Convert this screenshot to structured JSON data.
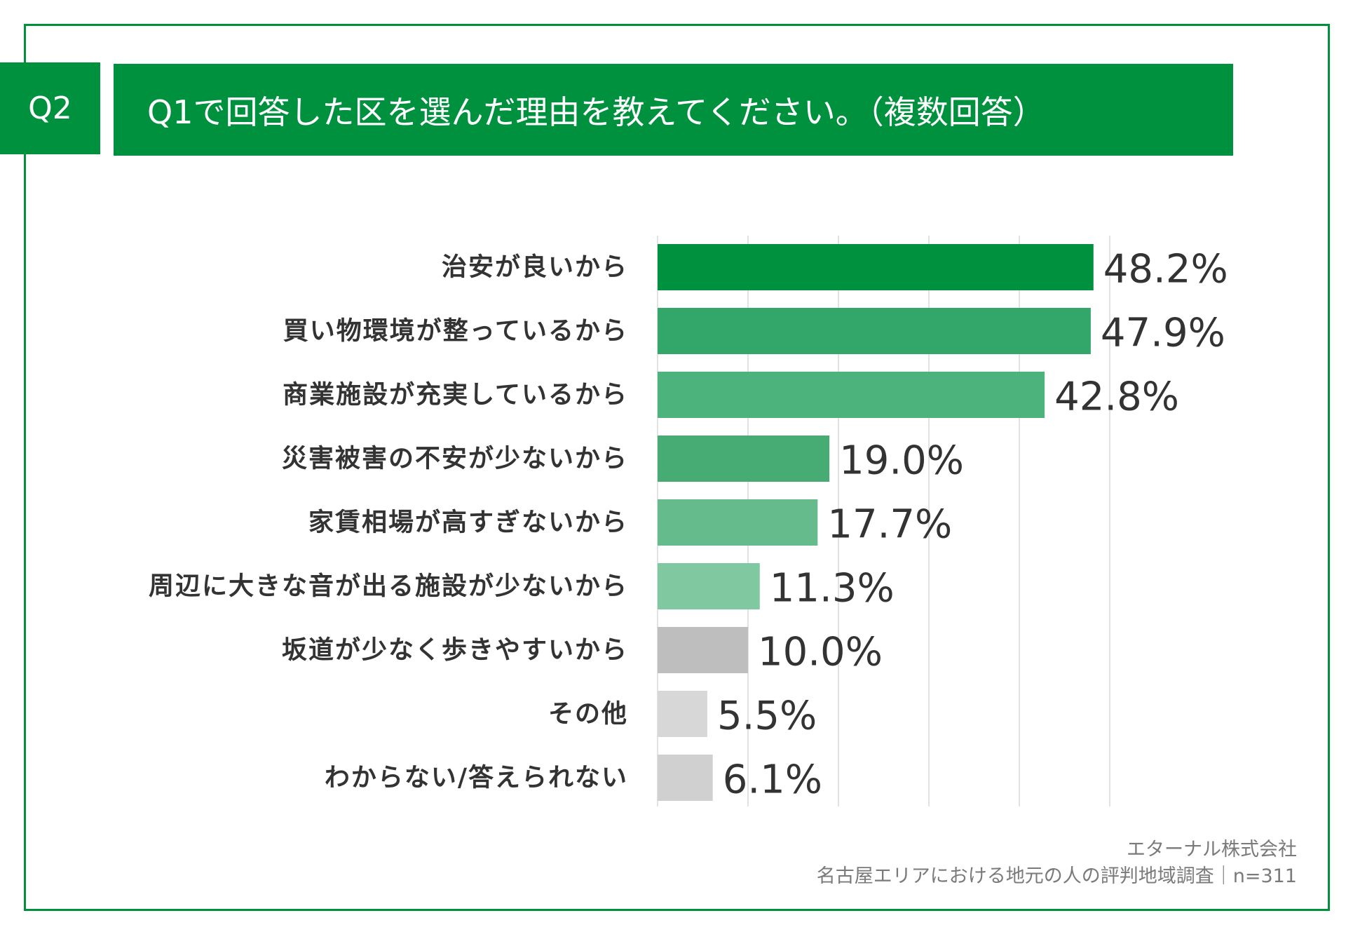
{
  "header": {
    "badge": "Q2",
    "question": "Q1で回答した区を選んだ理由を教えてください。（複数回答）"
  },
  "chart_data": {
    "type": "bar",
    "orientation": "horizontal",
    "categories": [
      "治安が良いから",
      "買い物環境が整っているから",
      "商業施設が充実しているから",
      "災害被害の不安が少ないから",
      "家賃相場が高すぎないから",
      "周辺に大きな音が出る施設が少ないから",
      "坂道が少なく歩きやすいから",
      "その他",
      "わからない/答えられない"
    ],
    "values": [
      48.2,
      47.9,
      42.8,
      19.0,
      17.7,
      11.3,
      10.0,
      5.5,
      6.1
    ],
    "value_labels": [
      "48.2%",
      "47.9%",
      "42.8%",
      "19.0%",
      "17.7%",
      "11.3%",
      "10.0%",
      "5.5%",
      "6.1%"
    ],
    "bar_colors": [
      "#00913f",
      "#33a66a",
      "#4db37c",
      "#46ac74",
      "#66bb8c",
      "#80c9a0",
      "#bebebe",
      "#d7d7d7",
      "#d0d0d0"
    ],
    "xlim": [
      0,
      50
    ],
    "gridlines": [
      0,
      10,
      20,
      30,
      40,
      50
    ],
    "grid": true
  },
  "footer": {
    "company": "エターナル株式会社",
    "survey": "名古屋エリアにおける地元の人の評判地域調査｜n=311"
  },
  "colors": {
    "accent": "#00913f",
    "text": "#333333",
    "footer_text": "#7a7a7a",
    "gridline": "#d9d9d9"
  }
}
